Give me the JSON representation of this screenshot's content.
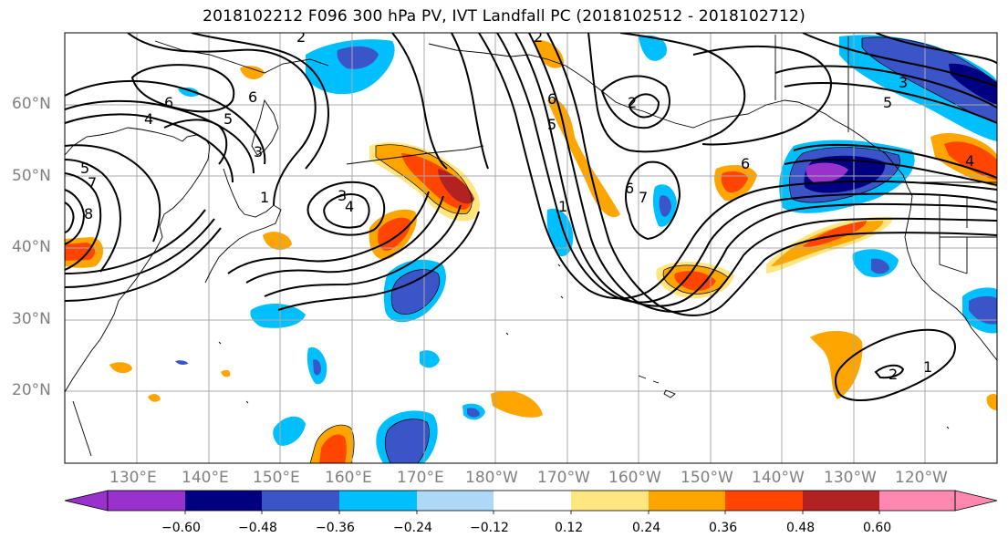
{
  "title": "2018102212 F096 300 hPa PV, IVT Landfall PC (2018102512 - 2018102712)",
  "lat_labels": [
    "60°N",
    "50°N",
    "40°N",
    "30°N",
    "20°N"
  ],
  "lon_labels": [
    "130°E",
    "140°E",
    "150°E",
    "160°E",
    "170°E",
    "180°W",
    "170°W",
    "160°W",
    "150°W",
    "140°W",
    "130°W",
    "120°W"
  ],
  "colorbar": {
    "ticks": [
      "−0.60",
      "−0.48",
      "−0.36",
      "−0.24",
      "−0.12",
      "0.12",
      "0.24",
      "0.36",
      "0.48",
      "0.60"
    ],
    "colors": [
      "#9932cc",
      "#000080",
      "#3a55c8",
      "#00bfff",
      "#add8f8",
      "#ffffff",
      "#ffe680",
      "#ffa500",
      "#ff4500",
      "#b22222",
      "#ff88b0"
    ]
  },
  "contour_labels": [
    "2",
    "6",
    "6",
    "4",
    "5",
    "3",
    "5",
    "7",
    "8",
    "1",
    "3",
    "4",
    "2",
    "6",
    "5",
    "1",
    "2",
    "6",
    "7",
    "6",
    "3",
    "5",
    "4",
    "1",
    "2"
  ]
}
